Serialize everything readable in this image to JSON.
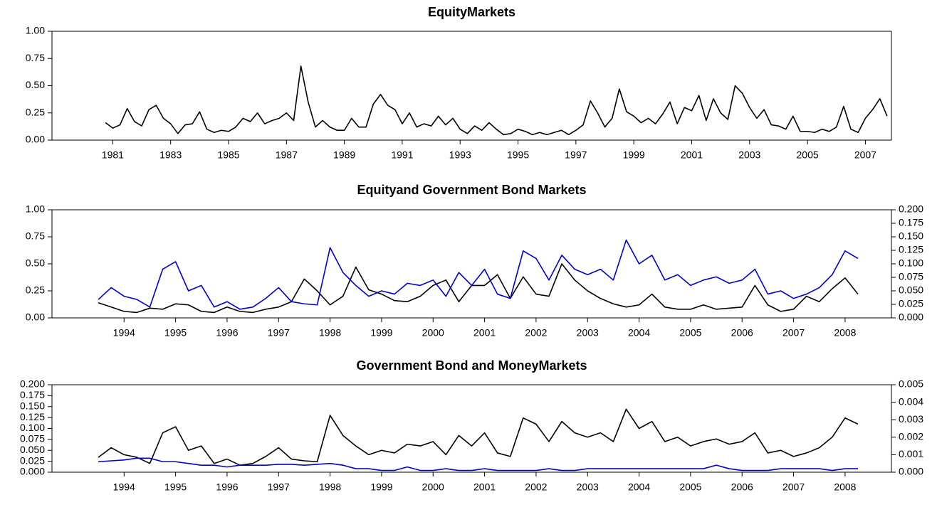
{
  "chart_data": [
    {
      "type": "line",
      "title": "EquityMarkets",
      "xlim": [
        1978.9,
        2007.9
      ],
      "xticks": [
        1981,
        1983,
        1985,
        1987,
        1989,
        1991,
        1993,
        1995,
        1997,
        1999,
        2001,
        2003,
        2005,
        2007
      ],
      "ylim": [
        0,
        1
      ],
      "yticks": [
        {
          "value": 0,
          "label": "0.00"
        },
        {
          "value": 0.25,
          "label": "0.25"
        },
        {
          "value": 0.5,
          "label": "0.50"
        },
        {
          "value": 0.75,
          "label": "0.75"
        },
        {
          "value": 1,
          "label": "1.00"
        }
      ],
      "x": [
        1980.75,
        1981,
        1981.25,
        1981.5,
        1981.75,
        1982,
        1982.25,
        1982.5,
        1982.75,
        1983,
        1983.25,
        1983.5,
        1983.75,
        1984,
        1984.25,
        1984.5,
        1984.75,
        1985,
        1985.25,
        1985.5,
        1985.75,
        1986,
        1986.25,
        1986.5,
        1986.75,
        1987,
        1987.25,
        1987.5,
        1987.75,
        1988,
        1988.25,
        1988.5,
        1988.75,
        1989,
        1989.25,
        1989.5,
        1989.75,
        1990,
        1990.25,
        1990.5,
        1990.75,
        1991,
        1991.25,
        1991.5,
        1991.75,
        1992,
        1992.25,
        1992.5,
        1992.75,
        1993,
        1993.25,
        1993.5,
        1993.75,
        1994,
        1994.25,
        1994.5,
        1994.75,
        1995,
        1995.25,
        1995.5,
        1995.75,
        1996,
        1996.25,
        1996.5,
        1996.75,
        1997,
        1997.25,
        1997.5,
        1997.75,
        1998,
        1998.25,
        1998.5,
        1998.75,
        1999,
        1999.25,
        1999.5,
        1999.75,
        2000,
        2000.25,
        2000.5,
        2000.75,
        2001,
        2001.25,
        2001.5,
        2001.75,
        2002,
        2002.25,
        2002.5,
        2002.75,
        2003,
        2003.25,
        2003.5,
        2003.75,
        2004,
        2004.25,
        2004.5,
        2004.75,
        2005,
        2005.25,
        2005.5,
        2005.75,
        2006,
        2006.25,
        2006.5,
        2006.75,
        2007,
        2007.25,
        2007.5,
        2007.75
      ],
      "series": [
        {
          "color": "#000000",
          "values": [
            0.16,
            0.11,
            0.14,
            0.29,
            0.17,
            0.13,
            0.28,
            0.32,
            0.2,
            0.15,
            0.06,
            0.14,
            0.15,
            0.26,
            0.1,
            0.07,
            0.09,
            0.08,
            0.12,
            0.2,
            0.17,
            0.25,
            0.15,
            0.18,
            0.2,
            0.25,
            0.18,
            0.68,
            0.35,
            0.12,
            0.18,
            0.12,
            0.09,
            0.09,
            0.2,
            0.12,
            0.12,
            0.33,
            0.42,
            0.32,
            0.28,
            0.15,
            0.25,
            0.12,
            0.15,
            0.13,
            0.22,
            0.14,
            0.2,
            0.1,
            0.06,
            0.13,
            0.09,
            0.16,
            0.1,
            0.05,
            0.06,
            0.1,
            0.08,
            0.05,
            0.07,
            0.05,
            0.07,
            0.09,
            0.05,
            0.09,
            0.14,
            0.36,
            0.25,
            0.12,
            0.2,
            0.47,
            0.26,
            0.22,
            0.16,
            0.2,
            0.15,
            0.24,
            0.35,
            0.15,
            0.3,
            0.27,
            0.41,
            0.18,
            0.38,
            0.25,
            0.19,
            0.5,
            0.43,
            0.3,
            0.2,
            0.28,
            0.14,
            0.13,
            0.1,
            0.22,
            0.08,
            0.08,
            0.07,
            0.1,
            0.08,
            0.12,
            0.31,
            0.1,
            0.07,
            0.2,
            0.28,
            0.38,
            0.22
          ]
        }
      ]
    },
    {
      "type": "line",
      "title": "Equityand Government Bond Markets",
      "xlim": [
        1992.6,
        2008.9
      ],
      "xticks": [
        1994,
        1995,
        1996,
        1997,
        1998,
        1999,
        2000,
        2001,
        2002,
        2003,
        2004,
        2005,
        2006,
        2007,
        2008
      ],
      "ylim": [
        0,
        1
      ],
      "yticks": [
        {
          "value": 0,
          "label": "0.00"
        },
        {
          "value": 0.25,
          "label": "0.25"
        },
        {
          "value": 0.5,
          "label": "0.50"
        },
        {
          "value": 0.75,
          "label": "0.75"
        },
        {
          "value": 1,
          "label": "1.00"
        }
      ],
      "y2lim": [
        0,
        0.2
      ],
      "y2ticks": [
        {
          "value": 0,
          "label": "0.000"
        },
        {
          "value": 0.025,
          "label": "0.025"
        },
        {
          "value": 0.05,
          "label": "0.050"
        },
        {
          "value": 0.075,
          "label": "0.075"
        },
        {
          "value": 0.1,
          "label": "0.100"
        },
        {
          "value": 0.125,
          "label": "0.125"
        },
        {
          "value": 0.15,
          "label": "0.150"
        },
        {
          "value": 0.175,
          "label": "0.175"
        },
        {
          "value": 0.2,
          "label": "0.200"
        }
      ],
      "x": [
        1993.5,
        1993.75,
        1994,
        1994.25,
        1994.5,
        1994.75,
        1995,
        1995.25,
        1995.5,
        1995.75,
        1996,
        1996.25,
        1996.5,
        1996.75,
        1997,
        1997.25,
        1997.5,
        1997.75,
        1998,
        1998.25,
        1998.5,
        1998.75,
        1999,
        1999.25,
        1999.5,
        1999.75,
        2000,
        2000.25,
        2000.5,
        2000.75,
        2001,
        2001.25,
        2001.5,
        2001.75,
        2002,
        2002.25,
        2002.5,
        2002.75,
        2003,
        2003.25,
        2003.5,
        2003.75,
        2004,
        2004.25,
        2004.5,
        2004.75,
        2005,
        2005.25,
        2005.5,
        2005.75,
        2006,
        2006.25,
        2006.5,
        2006.75,
        2007,
        2007.25,
        2007.5,
        2007.75,
        2008,
        2008.25
      ],
      "series": [
        {
          "color": "#000000",
          "values": [
            0.14,
            0.1,
            0.06,
            0.05,
            0.09,
            0.08,
            0.13,
            0.12,
            0.06,
            0.05,
            0.1,
            0.06,
            0.05,
            0.08,
            0.1,
            0.15,
            0.36,
            0.25,
            0.12,
            0.2,
            0.47,
            0.26,
            0.22,
            0.16,
            0.15,
            0.2,
            0.3,
            0.35,
            0.15,
            0.3,
            0.3,
            0.4,
            0.18,
            0.38,
            0.22,
            0.2,
            0.5,
            0.35,
            0.25,
            0.18,
            0.13,
            0.1,
            0.12,
            0.22,
            0.1,
            0.08,
            0.08,
            0.12,
            0.08,
            0.09,
            0.1,
            0.3,
            0.12,
            0.06,
            0.08,
            0.2,
            0.15,
            0.27,
            0.37,
            0.22
          ]
        },
        {
          "color": "#0000cc",
          "axis": "y2",
          "values": [
            0.034,
            0.056,
            0.04,
            0.034,
            0.02,
            0.09,
            0.104,
            0.05,
            0.06,
            0.02,
            0.03,
            0.016,
            0.02,
            0.036,
            0.056,
            0.03,
            0.026,
            0.024,
            0.13,
            0.084,
            0.06,
            0.04,
            0.05,
            0.044,
            0.064,
            0.06,
            0.07,
            0.04,
            0.084,
            0.06,
            0.09,
            0.044,
            0.036,
            0.124,
            0.11,
            0.07,
            0.116,
            0.09,
            0.08,
            0.09,
            0.07,
            0.144,
            0.1,
            0.116,
            0.07,
            0.08,
            0.06,
            0.07,
            0.076,
            0.064,
            0.07,
            0.09,
            0.044,
            0.05,
            0.036,
            0.044,
            0.056,
            0.08,
            0.124,
            0.11
          ]
        }
      ]
    },
    {
      "type": "line",
      "title": "Government Bond and MoneyMarkets",
      "xlim": [
        1992.6,
        2008.9
      ],
      "xticks": [
        1994,
        1995,
        1996,
        1997,
        1998,
        1999,
        2000,
        2001,
        2002,
        2003,
        2004,
        2005,
        2006,
        2007,
        2008
      ],
      "ylim": [
        0,
        0.2
      ],
      "yticks": [
        {
          "value": 0,
          "label": "0.000"
        },
        {
          "value": 0.025,
          "label": "0.025"
        },
        {
          "value": 0.05,
          "label": "0.050"
        },
        {
          "value": 0.075,
          "label": "0.075"
        },
        {
          "value": 0.1,
          "label": "0.100"
        },
        {
          "value": 0.125,
          "label": "0.125"
        },
        {
          "value": 0.15,
          "label": "0.150"
        },
        {
          "value": 0.175,
          "label": "0.175"
        },
        {
          "value": 0.2,
          "label": "0.200"
        }
      ],
      "y2lim": [
        0,
        0.005
      ],
      "y2ticks": [
        {
          "value": 0,
          "label": "0.000"
        },
        {
          "value": 0.001,
          "label": "0.001"
        },
        {
          "value": 0.002,
          "label": "0.002"
        },
        {
          "value": 0.003,
          "label": "0.003"
        },
        {
          "value": 0.004,
          "label": "0.004"
        },
        {
          "value": 0.005,
          "label": "0.005"
        }
      ],
      "x": [
        1993.5,
        1993.75,
        1994,
        1994.25,
        1994.5,
        1994.75,
        1995,
        1995.25,
        1995.5,
        1995.75,
        1996,
        1996.25,
        1996.5,
        1996.75,
        1997,
        1997.25,
        1997.5,
        1997.75,
        1998,
        1998.25,
        1998.5,
        1998.75,
        1999,
        1999.25,
        1999.5,
        1999.75,
        2000,
        2000.25,
        2000.5,
        2000.75,
        2001,
        2001.25,
        2001.5,
        2001.75,
        2002,
        2002.25,
        2002.5,
        2002.75,
        2003,
        2003.25,
        2003.5,
        2003.75,
        2004,
        2004.25,
        2004.5,
        2004.75,
        2005,
        2005.25,
        2005.5,
        2005.75,
        2006,
        2006.25,
        2006.5,
        2006.75,
        2007,
        2007.25,
        2007.5,
        2007.75,
        2008,
        2008.25
      ],
      "series": [
        {
          "color": "#000000",
          "values": [
            0.034,
            0.056,
            0.04,
            0.034,
            0.02,
            0.09,
            0.104,
            0.05,
            0.06,
            0.02,
            0.03,
            0.016,
            0.02,
            0.036,
            0.056,
            0.03,
            0.026,
            0.024,
            0.13,
            0.084,
            0.06,
            0.04,
            0.05,
            0.044,
            0.064,
            0.06,
            0.07,
            0.04,
            0.084,
            0.06,
            0.09,
            0.044,
            0.036,
            0.124,
            0.11,
            0.07,
            0.116,
            0.09,
            0.08,
            0.09,
            0.07,
            0.144,
            0.1,
            0.116,
            0.07,
            0.08,
            0.06,
            0.07,
            0.076,
            0.064,
            0.07,
            0.09,
            0.044,
            0.05,
            0.036,
            0.044,
            0.056,
            0.08,
            0.124,
            0.11
          ]
        },
        {
          "color": "#0000cc",
          "axis": "y2",
          "values": [
            0.0006,
            0.00065,
            0.0007,
            0.0008,
            0.0008,
            0.0006,
            0.0006,
            0.0005,
            0.0004,
            0.0004,
            0.0003,
            0.0004,
            0.0004,
            0.0004,
            0.00045,
            0.00045,
            0.0004,
            0.00045,
            0.0005,
            0.0004,
            0.0002,
            0.0002,
            0.0001,
            0.0001,
            0.0003,
            0.0001,
            0.0001,
            0.0002,
            0.0001,
            0.0001,
            0.0002,
            0.0001,
            0.0001,
            0.0001,
            0.0001,
            0.0002,
            0.0001,
            0.0001,
            0.0002,
            0.0002,
            0.0002,
            0.0002,
            0.0002,
            0.0002,
            0.0002,
            0.0002,
            0.0002,
            0.0002,
            0.0004,
            0.0002,
            0.0001,
            0.0001,
            0.0001,
            0.0002,
            0.0002,
            0.0002,
            0.0002,
            0.0001,
            0.0002,
            0.0002
          ]
        }
      ]
    }
  ]
}
